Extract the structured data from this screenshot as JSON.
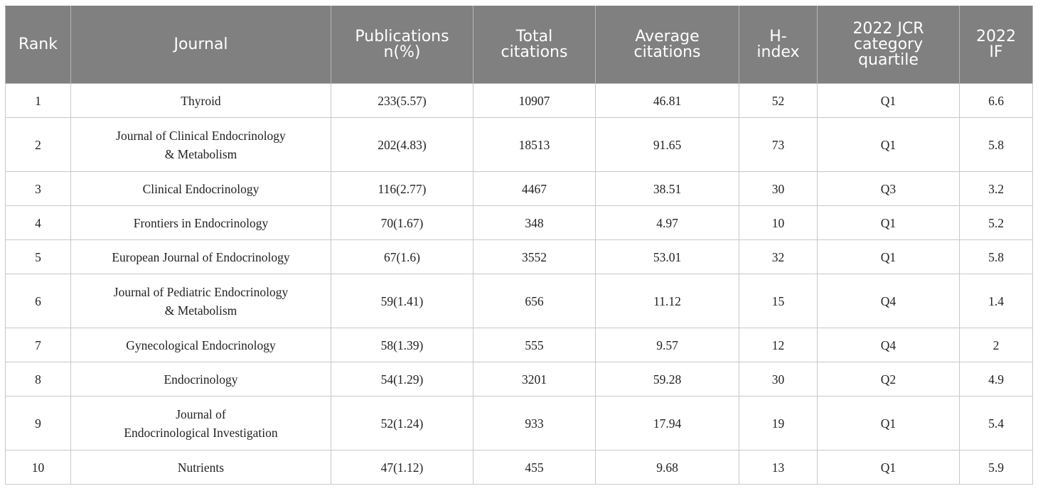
{
  "table": {
    "headers": [
      "Rank",
      "Journal",
      "Publications\nn(%)",
      "Total\ncitations",
      "Average\ncitations",
      "H-\nindex",
      "2022 JCR\ncategory\nquartile",
      "2022\nIF"
    ],
    "rows": [
      {
        "rank": "1",
        "journal": "Thyroid",
        "publications": "233(5.57)",
        "total_citations": "10907",
        "average_citations": "46.81",
        "h_index": "52",
        "quartile": "Q1",
        "impact_factor": "6.6"
      },
      {
        "rank": "2",
        "journal": "Journal of Clinical Endocrinology\n& Metabolism",
        "publications": "202(4.83)",
        "total_citations": "18513",
        "average_citations": "91.65",
        "h_index": "73",
        "quartile": "Q1",
        "impact_factor": "5.8"
      },
      {
        "rank": "3",
        "journal": "Clinical Endocrinology",
        "publications": "116(2.77)",
        "total_citations": "4467",
        "average_citations": "38.51",
        "h_index": "30",
        "quartile": "Q3",
        "impact_factor": "3.2"
      },
      {
        "rank": "4",
        "journal": "Frontiers in Endocrinology",
        "publications": "70(1.67)",
        "total_citations": "348",
        "average_citations": "4.97",
        "h_index": "10",
        "quartile": "Q1",
        "impact_factor": "5.2"
      },
      {
        "rank": "5",
        "journal": "European Journal of Endocrinology",
        "publications": "67(1.6)",
        "total_citations": "3552",
        "average_citations": "53.01",
        "h_index": "32",
        "quartile": "Q1",
        "impact_factor": "5.8"
      },
      {
        "rank": "6",
        "journal": "Journal of Pediatric Endocrinology\n& Metabolism",
        "publications": "59(1.41)",
        "total_citations": "656",
        "average_citations": "11.12",
        "h_index": "15",
        "quartile": "Q4",
        "impact_factor": "1.4"
      },
      {
        "rank": "7",
        "journal": "Gynecological Endocrinology",
        "publications": "58(1.39)",
        "total_citations": "555",
        "average_citations": "9.57",
        "h_index": "12",
        "quartile": "Q4",
        "impact_factor": "2"
      },
      {
        "rank": "8",
        "journal": "Endocrinology",
        "publications": "54(1.29)",
        "total_citations": "3201",
        "average_citations": "59.28",
        "h_index": "30",
        "quartile": "Q2",
        "impact_factor": "4.9"
      },
      {
        "rank": "9",
        "journal": "Journal of\nEndocrinological Investigation",
        "publications": "52(1.24)",
        "total_citations": "933",
        "average_citations": "17.94",
        "h_index": "19",
        "quartile": "Q1",
        "impact_factor": "5.4"
      },
      {
        "rank": "10",
        "journal": "Nutrients",
        "publications": "47(1.12)",
        "total_citations": "455",
        "average_citations": "9.68",
        "h_index": "13",
        "quartile": "Q1",
        "impact_factor": "5.9"
      }
    ]
  }
}
